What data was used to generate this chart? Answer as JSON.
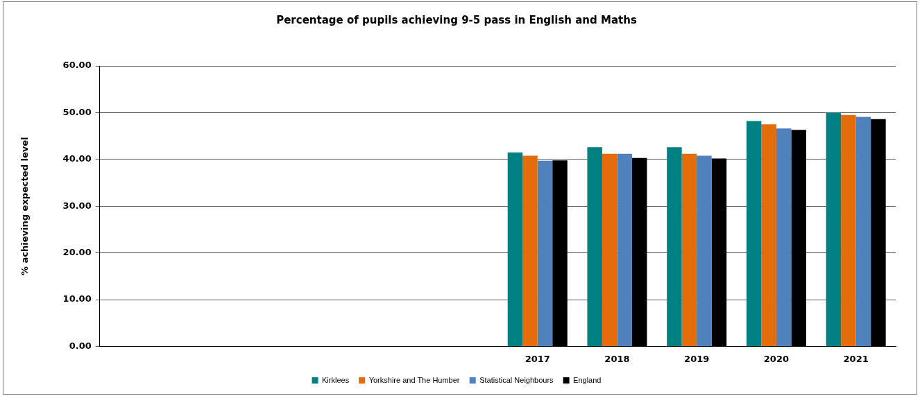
{
  "chart_data": {
    "type": "bar",
    "title": "Percentage of pupils achieving 9-5 pass in English and Maths",
    "ylabel": "% achieving expected level",
    "categories": [
      null,
      null,
      null,
      null,
      null,
      "2017",
      "2018",
      "2019",
      "2020",
      "2021"
    ],
    "series": [
      {
        "name": "Kirklees",
        "color": "#008080",
        "values": [
          null,
          null,
          null,
          null,
          null,
          41.5,
          42.6,
          42.6,
          48.2,
          50.0
        ]
      },
      {
        "name": "Yorkshire and The Humber",
        "color": "#e46c0a",
        "values": [
          null,
          null,
          null,
          null,
          null,
          40.8,
          41.2,
          41.2,
          47.5,
          49.5
        ]
      },
      {
        "name": "Statistical Neighbours",
        "color": "#4f81bd",
        "values": [
          null,
          null,
          null,
          null,
          null,
          39.7,
          41.2,
          40.8,
          46.6,
          49.1
        ]
      },
      {
        "name": "England",
        "color": "#000000",
        "values": [
          null,
          null,
          null,
          null,
          null,
          39.8,
          40.3,
          40.2,
          46.3,
          48.6
        ]
      }
    ],
    "ylim": [
      0,
      60
    ],
    "yticks": [
      {
        "value": 0,
        "label": "0.00"
      },
      {
        "value": 10,
        "label": "10.00"
      },
      {
        "value": 20,
        "label": "20.00"
      },
      {
        "value": 30,
        "label": "30.00"
      },
      {
        "value": 40,
        "label": "40.00"
      },
      {
        "value": 50,
        "label": "50.00"
      },
      {
        "value": 60,
        "label": "60.00"
      }
    ],
    "grid": "y",
    "legend": "bottom"
  }
}
